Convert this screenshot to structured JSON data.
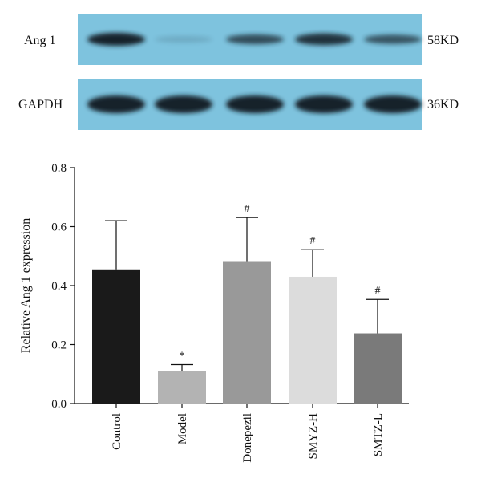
{
  "blot": {
    "rows": [
      {
        "label": "Ang 1",
        "size": "58KD",
        "background": "#7ec3de",
        "band_intensity": [
          1.0,
          0.15,
          0.75,
          0.9,
          0.7
        ]
      },
      {
        "label": "GAPDH",
        "size": "36KD",
        "background": "#7ec3de",
        "band_intensity": [
          1.0,
          1.0,
          1.0,
          1.0,
          1.0
        ]
      }
    ]
  },
  "chart_data": {
    "type": "bar",
    "categories": [
      "Control",
      "Model",
      "Donepezil",
      "SMYZ-H",
      "SMTZ-L"
    ],
    "values": [
      0.455,
      0.11,
      0.483,
      0.43,
      0.238
    ],
    "errors": [
      0.165,
      0.022,
      0.148,
      0.092,
      0.115
    ],
    "significance": [
      "",
      "*",
      "#",
      "#",
      "#"
    ],
    "colors": [
      "#1a1a1a",
      "#b3b3b3",
      "#999999",
      "#dcdcdc",
      "#7a7a7a"
    ],
    "ylabel": "Relative Ang 1 expression",
    "xlabel": "",
    "ylim": [
      0.0,
      0.8
    ],
    "yticks": [
      "0.0",
      "0.2",
      "0.4",
      "0.6",
      "0.8"
    ],
    "grid": false
  }
}
